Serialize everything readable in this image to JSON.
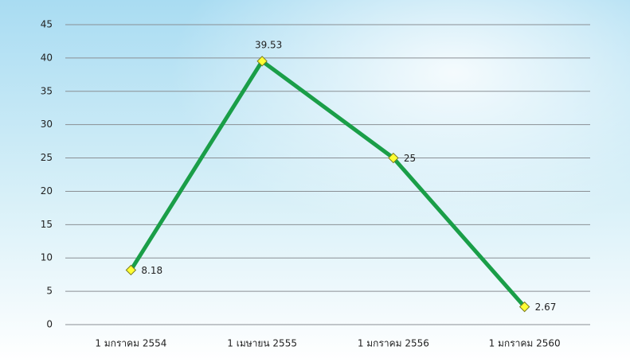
{
  "chart_data": {
    "type": "line",
    "categories": [
      "1 มกราคม 2554",
      "1 เมษายน 2555",
      "1 มกราคม 2556",
      "1 มกราคม 2560"
    ],
    "values": [
      8.18,
      39.53,
      25,
      2.67
    ],
    "color": "#1a9e48",
    "marker_color": "#ffff33",
    "ylim": [
      0,
      45
    ],
    "yticks": [
      0,
      5,
      10,
      15,
      20,
      25,
      30,
      35,
      40,
      45
    ],
    "grid": true
  }
}
